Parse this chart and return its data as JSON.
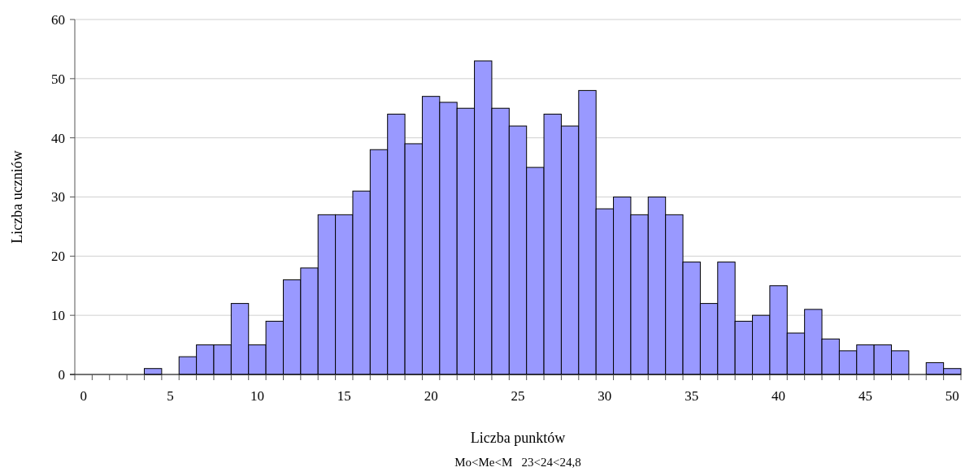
{
  "chart_data": {
    "type": "bar",
    "xlabel": "Liczba punktów",
    "ylabel": "Liczba uczniów",
    "annotations": [
      "Mo<Me<M   23<24<24,8"
    ],
    "categories": [
      "0",
      null,
      null,
      null,
      null,
      "5",
      null,
      null,
      null,
      null,
      "10",
      null,
      null,
      null,
      null,
      "15",
      null,
      null,
      null,
      null,
      "20",
      null,
      null,
      null,
      null,
      "25",
      null,
      null,
      null,
      null,
      "30",
      null,
      null,
      null,
      null,
      "35",
      null,
      null,
      null,
      null,
      "40",
      null,
      null,
      null,
      null,
      "45",
      null,
      null,
      null,
      null,
      "50"
    ],
    "values": [
      0,
      0,
      0,
      0,
      1,
      0,
      3,
      5,
      5,
      12,
      5,
      9,
      16,
      18,
      27,
      27,
      31,
      38,
      44,
      39,
      47,
      46,
      45,
      53,
      45,
      42,
      35,
      44,
      42,
      48,
      28,
      30,
      27,
      30,
      27,
      19,
      12,
      19,
      9,
      10,
      15,
      7,
      11,
      6,
      4,
      5,
      5,
      4,
      0,
      2,
      1
    ],
    "color": "#9999ff",
    "ylim": [
      0,
      60
    ],
    "yticks": [
      0,
      10,
      20,
      30,
      40,
      50,
      60
    ],
    "grid": "y"
  }
}
